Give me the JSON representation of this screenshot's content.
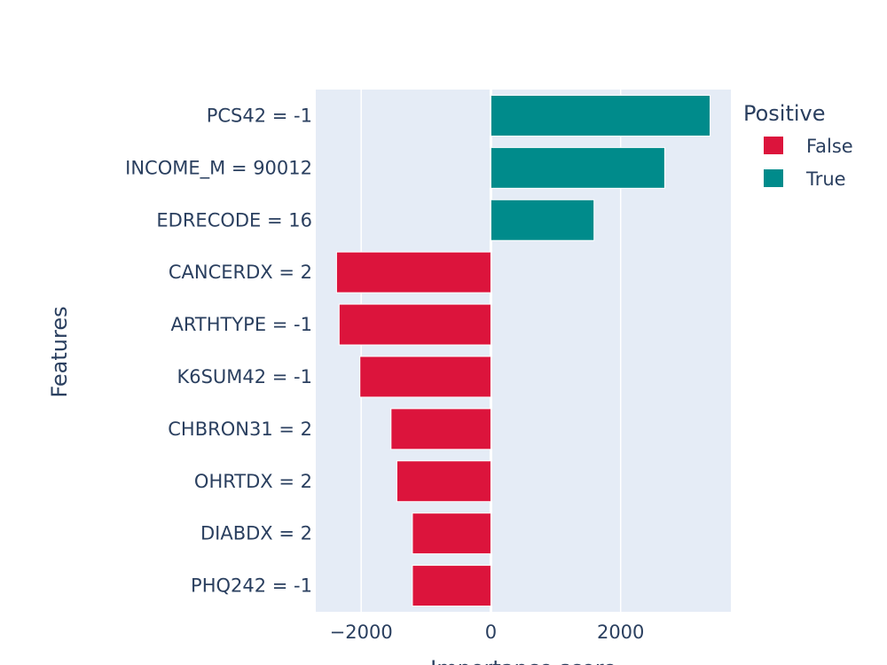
{
  "chart_data": {
    "type": "bar",
    "orientation": "horizontal",
    "xlabel": "Importance score",
    "ylabel": "Features",
    "xlim": [
      -2700,
      3700
    ],
    "xticks": [
      -2000,
      0,
      2000
    ],
    "xtick_labels": [
      "−2000",
      "0",
      "2000"
    ],
    "categories": [
      "PCS42 = -1",
      "INCOME_M = 90012",
      "EDRECODE = 16",
      "CANCERDX = 2",
      "ARTHTYPE = -1",
      "K6SUM42 = -1",
      "CHBRON31 = 2",
      "OHRTDX = 2",
      "DIABDX = 2",
      "PHQ242 = -1"
    ],
    "values": [
      3380,
      2680,
      1590,
      -2380,
      -2340,
      -2020,
      -1540,
      -1450,
      -1210,
      -1210
    ],
    "positive": [
      true,
      true,
      true,
      false,
      false,
      false,
      false,
      false,
      false,
      false
    ],
    "legend": {
      "title": "Positive",
      "position": "top-right",
      "entries": [
        {
          "label": "False",
          "color": "#DC143C"
        },
        {
          "label": "True",
          "color": "#008B8B"
        }
      ]
    },
    "colors": {
      "false": "#DC143C",
      "true": "#008B8B",
      "plot_bg": "#E5ECF6",
      "grid": "#ffffff"
    }
  }
}
